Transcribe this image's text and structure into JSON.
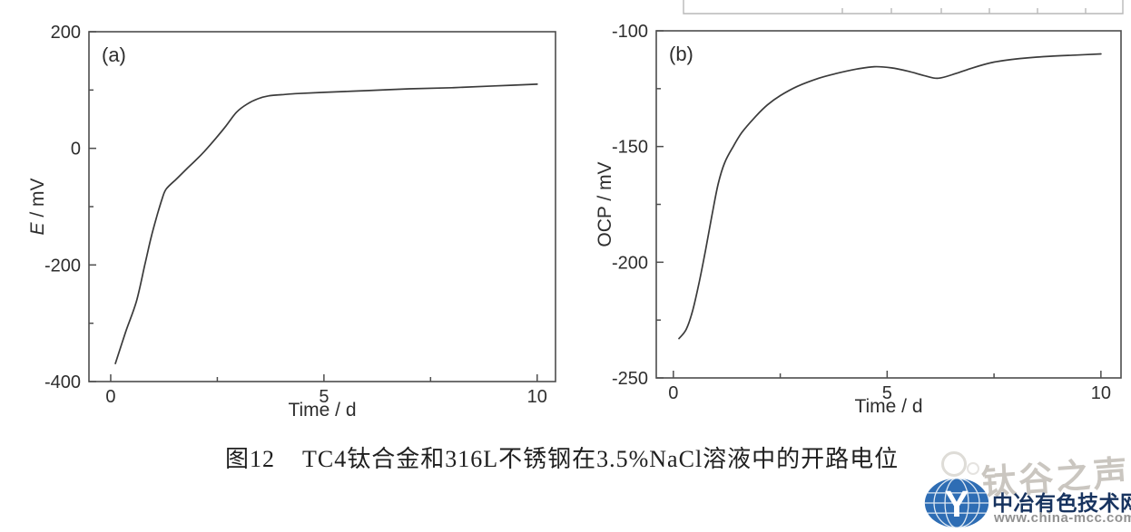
{
  "figure": {
    "caption_prefix": "图12",
    "caption_text": "TC4钛合金和316L不锈钢在3.5%NaCl溶液中的开路电位"
  },
  "watermark": {
    "text": "钛谷之声",
    "site_name": "中冶有色技术网",
    "site_url": "www.china-mcc.com",
    "globe_letter": "Y",
    "colors": {
      "globe": "#2e6db4",
      "site_name": "#17335f",
      "site_url": "#919191",
      "watermark_text": "#b6b1a8"
    }
  },
  "chart_data": [
    {
      "type": "line",
      "panel_label": "(a)",
      "xlabel": "Time / d",
      "ylabel_parts": [
        {
          "t": "E",
          "italic": true
        },
        {
          "t": " / mV",
          "italic": false
        }
      ],
      "xlim": [
        -0.51,
        10.43
      ],
      "ylim": [
        -400,
        200
      ],
      "x_ticks": [
        0,
        5,
        10
      ],
      "x_minor_ticks": [
        2.5,
        7.5
      ],
      "y_ticks": [
        200,
        0,
        -200,
        -400
      ],
      "y_minor_ticks": [
        100,
        -100,
        -300
      ],
      "grid": false,
      "legend": "none",
      "line_color": "#3b3b3b",
      "series": [
        {
          "name": "TC4",
          "x": [
            0.11,
            0.35,
            0.6,
            0.8,
            0.95,
            1.1,
            1.2,
            1.3,
            1.55,
            1.8,
            2.0,
            2.2,
            2.45,
            2.7,
            2.95,
            3.2,
            3.45,
            3.7,
            4.0,
            4.4,
            5.0,
            6.0,
            7.0,
            8.0,
            9.0,
            10.0
          ],
          "y": [
            -369,
            -315,
            -263,
            -200,
            -152,
            -112,
            -88,
            -70,
            -52,
            -34,
            -20,
            -5,
            16,
            38,
            62,
            76,
            85,
            90,
            92,
            94,
            96,
            99,
            102,
            104,
            107,
            110
          ]
        }
      ]
    },
    {
      "type": "line",
      "panel_label": "(b)",
      "xlabel": "Time / d",
      "ylabel_parts": [
        {
          "t": "OCP / mV",
          "italic": false
        }
      ],
      "xlim": [
        -0.4,
        10.47
      ],
      "ylim": [
        -250,
        -100
      ],
      "x_ticks": [
        0,
        5,
        10
      ],
      "x_minor_ticks": [
        2.5,
        7.5
      ],
      "y_ticks": [
        -100,
        -150,
        -200,
        -250
      ],
      "y_minor_ticks": [
        -125,
        -175,
        -225
      ],
      "grid": false,
      "legend": "none",
      "line_color": "#3b3b3b",
      "series": [
        {
          "name": "316L",
          "x": [
            0.13,
            0.3,
            0.45,
            0.6,
            0.75,
            0.9,
            1.05,
            1.2,
            1.4,
            1.6,
            1.9,
            2.2,
            2.5,
            2.9,
            3.4,
            3.8,
            4.3,
            4.7,
            5.1,
            5.5,
            5.9,
            6.2,
            6.6,
            7.0,
            7.5,
            8.1,
            8.8,
            9.4,
            10.0
          ],
          "y": [
            -233,
            -229,
            -221,
            -209,
            -195,
            -180,
            -166,
            -157,
            -150,
            -144,
            -137.5,
            -132,
            -128,
            -124,
            -120.5,
            -118.5,
            -116.5,
            -115.5,
            -116,
            -117.5,
            -119.5,
            -120.5,
            -118.5,
            -116,
            -113.5,
            -112,
            -111,
            -110.5,
            -110
          ]
        }
      ]
    }
  ]
}
